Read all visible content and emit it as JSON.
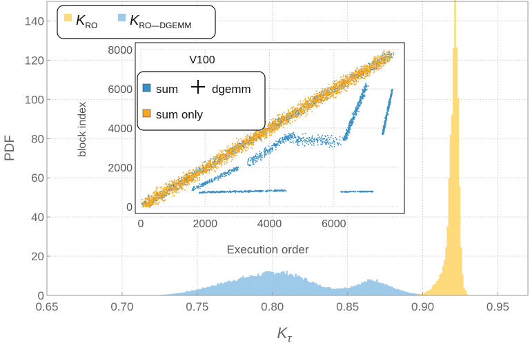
{
  "chart_data": [
    {
      "type": "histogram",
      "xlabel": "K",
      "xlabel_subscript": "τ",
      "ylabel": "PDF",
      "xlim": [
        0.65,
        0.97
      ],
      "ylim": [
        0,
        150
      ],
      "xticks": [
        "0.65",
        "0.70",
        "0.75",
        "0.80",
        "0.85",
        "0.90",
        "0.95"
      ],
      "yticks": [
        "0",
        "20",
        "40",
        "60",
        "80",
        "100",
        "120",
        "140"
      ],
      "grid": true,
      "legend_position": "top-left",
      "legend": [
        {
          "base": "K",
          "sub": "RO",
          "color": "#FFDA7A"
        },
        {
          "base": "K",
          "sub": "RO—DGEMM",
          "color": "#9ECAE9"
        }
      ],
      "series": [
        {
          "name": "K_RO—DGEMM",
          "color": "#9ECAE9",
          "x": [
            0.72,
            0.73,
            0.74,
            0.75,
            0.76,
            0.77,
            0.78,
            0.79,
            0.8,
            0.805,
            0.81,
            0.82,
            0.83,
            0.84,
            0.85,
            0.86,
            0.865,
            0.87,
            0.875,
            0.88,
            0.89,
            0.9,
            0.905
          ],
          "values": [
            0,
            0.5,
            1.5,
            3,
            5,
            7,
            9,
            10.5,
            11.8,
            12,
            11.5,
            9,
            5.5,
            3.5,
            4,
            6.5,
            8,
            7.5,
            6,
            4,
            1.5,
            0.3,
            0
          ]
        },
        {
          "name": "K_RO",
          "color": "#FFDA7A",
          "x": [
            0.895,
            0.9,
            0.905,
            0.91,
            0.913,
            0.915,
            0.917,
            0.919,
            0.92,
            0.921,
            0.922,
            0.923,
            0.924,
            0.925,
            0.927,
            0.93
          ],
          "values": [
            0,
            1,
            3,
            8,
            13,
            20,
            45,
            85,
            115,
            140,
            145,
            125,
            80,
            30,
            5,
            0
          ]
        }
      ]
    },
    {
      "type": "scatter",
      "title": "V100",
      "xlabel": "Execution order",
      "ylabel": "block index",
      "xlim": [
        0,
        8000
      ],
      "ylim": [
        0,
        8000
      ],
      "xticks": [
        "0",
        "2000",
        "4000",
        "6000"
      ],
      "yticks": [
        "0",
        "2000",
        "4000",
        "6000",
        "8000"
      ],
      "grid": true,
      "legend_position": "top-left",
      "legend": [
        {
          "label": "sum",
          "suffix": "dgemm",
          "color": "#3A8FC4"
        },
        {
          "label": "sum only",
          "color": "#F5A623"
        }
      ],
      "series": [
        {
          "name": "sum + dgemm",
          "color": "#3A8FC4",
          "segments": [
            {
              "x": [
                0,
                7800
              ],
              "y": [
                0,
                7800
              ],
              "spread": 350
            },
            {
              "x": [
                3300,
                4700
              ],
              "y": [
                2200,
                3700
              ],
              "spread": 300
            },
            {
              "x": [
                4500,
                6200
              ],
              "y": [
                3500,
                3300
              ],
              "spread": 400
            },
            {
              "x": [
                6300,
                7000
              ],
              "y": [
                3400,
                6200
              ],
              "spread": 200
            },
            {
              "x": [
                1600,
                3000
              ],
              "y": [
                900,
                2000
              ],
              "spread": 150
            },
            {
              "x": [
                1800,
                4500
              ],
              "y": [
                750,
                850
              ],
              "spread": 60
            },
            {
              "x": [
                6200,
                7200
              ],
              "y": [
                780,
                800
              ],
              "spread": 40
            },
            {
              "x": [
                7500,
                7800
              ],
              "y": [
                3700,
                6000
              ],
              "spread": 100
            }
          ]
        },
        {
          "name": "sum only",
          "color": "#F5A623",
          "segments": [
            {
              "x": [
                0,
                7700
              ],
              "y": [
                0,
                7700
              ],
              "spread": 500
            }
          ]
        }
      ]
    }
  ]
}
